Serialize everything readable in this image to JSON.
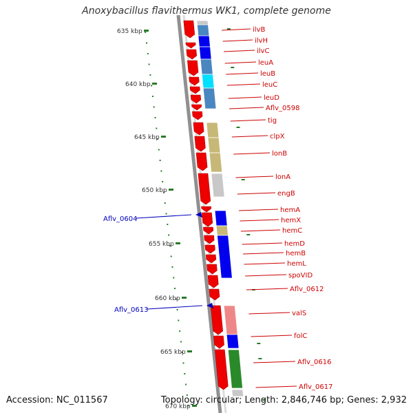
{
  "title": "Anoxybacillus flavithermus WK1, complete genome",
  "footer": {
    "accession": "Accession: NC_011567",
    "summary": "Topology: circular; Length: 2,846,746 bp; Genes: 2,932"
  },
  "colors": {
    "gene_label": "#cc0000",
    "gene_arrow": "#ee0000",
    "reverse_label": "#0000bb",
    "tick": "#2a7a2a",
    "backbone": "#909090",
    "cog_blue": "#0000ee",
    "cog_steelblue": "#4a86c0",
    "cog_cyan": "#00e0ff",
    "cog_khaki": "#c8b878",
    "cog_pink": "#ee8888",
    "cog_green": "#2a8a2a",
    "cog_gray": "#c8c8c8"
  },
  "kbp_labels": [
    "635 kbp",
    "640 kbp",
    "645 kbp",
    "650 kbp",
    "655 kbp",
    "660 kbp",
    "665 kbp",
    "670 kbp"
  ],
  "forward_genes": [
    "ilvB",
    "ilvH",
    "ilvC",
    "leuA",
    "leuB",
    "leuC",
    "leuD",
    "Aflv_0598",
    "tig",
    "clpX",
    "lonB",
    "lonA",
    "engB",
    "hemA",
    "hemX",
    "hemC",
    "hemD",
    "hemB",
    "hemL",
    "spoVID",
    "Aflv_0612",
    "valS",
    "folC",
    "Aflv_0616",
    "Aflv_0617"
  ],
  "reverse_genes": [
    "Aflv_0604",
    "Aflv_0613"
  ]
}
